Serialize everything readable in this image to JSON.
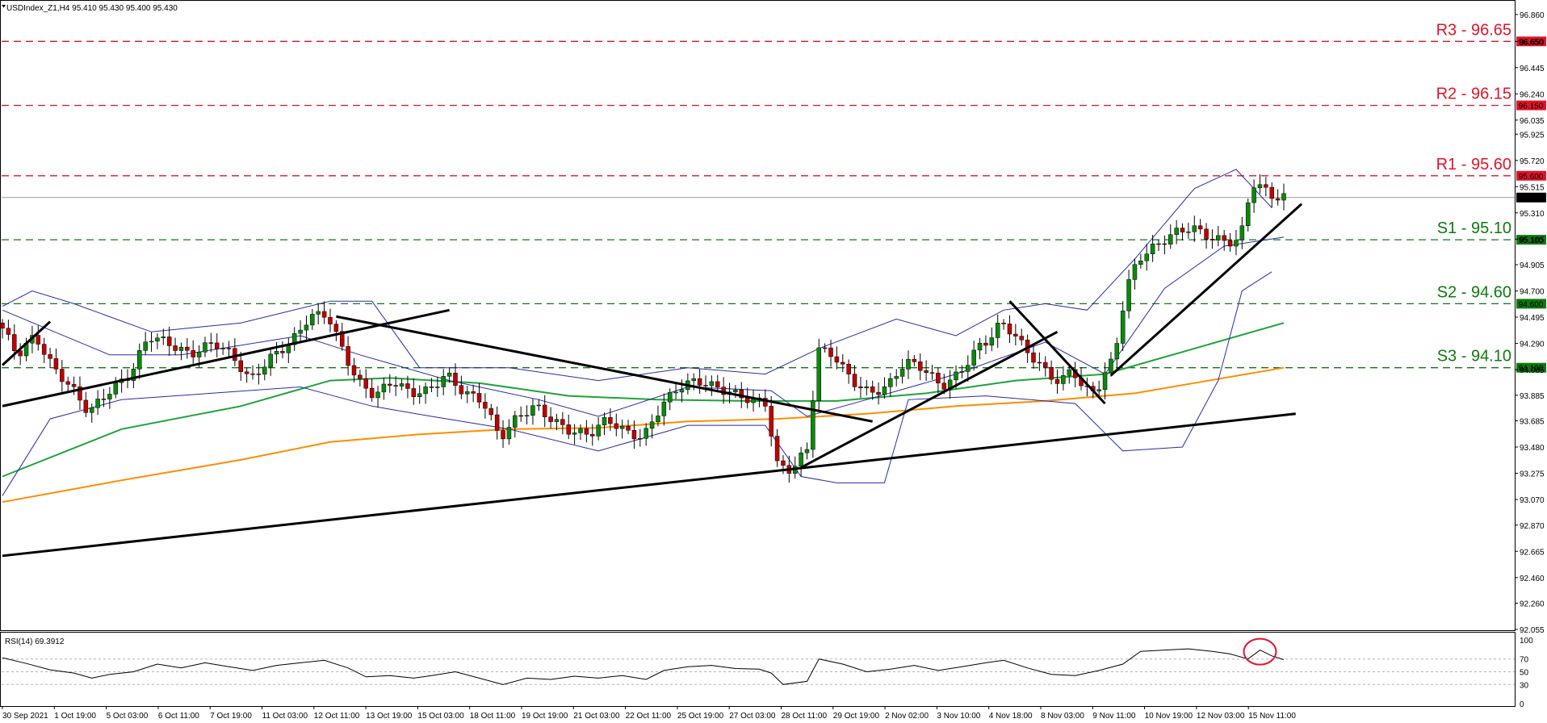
{
  "header": {
    "symbol_line": "USDIndex_Z1,H4  95.410 95.430 95.400 95.430",
    "rsi_line": "RSI(14) 69.3912"
  },
  "colors": {
    "bull": "#0a8a0a",
    "bear": "#c00000",
    "bollinger": "#2a2aa8",
    "ma_green": "#1fa33a",
    "ma_orange": "#ff8c00",
    "trendline": "#000000",
    "resistance": "#e0142a",
    "support": "#0d7a0d",
    "rsi_line": "#000000",
    "highlight_circle": "#e0142a",
    "current_price_line": "#9a9a9a"
  },
  "chart_data": {
    "type": "candlestick",
    "title": "",
    "price_axis": {
      "ticks": [
        "96.860",
        "96.650",
        "96.445",
        "96.240",
        "96.035",
        "95.925",
        "95.720",
        "95.515",
        "95.310",
        "95.105",
        "94.905",
        "94.700",
        "94.495",
        "94.290",
        "94.085",
        "93.885",
        "93.685",
        "93.480",
        "93.275",
        "93.070",
        "92.870",
        "92.665",
        "92.460",
        "92.260",
        "92.055"
      ],
      "range": [
        92.055,
        96.86
      ]
    },
    "time_axis": {
      "labels": [
        "30 Sep 2021",
        "1 Oct 19:00",
        "5 Oct 03:00",
        "6 Oct 11:00",
        "7 Oct 19:00",
        "11 Oct 03:00",
        "12 Oct 11:00",
        "13 Oct 19:00",
        "15 Oct 03:00",
        "18 Oct 11:00",
        "19 Oct 19:00",
        "21 Oct 03:00",
        "22 Oct 11:00",
        "25 Oct 19:00",
        "27 Oct 03:00",
        "28 Oct 11:00",
        "29 Oct 19:00",
        "2 Nov 02:00",
        "3 Nov 10:00",
        "4 Nov 18:00",
        "8 Nov 03:00",
        "9 Nov 11:00",
        "10 Nov 19:00",
        "12 Nov 03:00",
        "15 Nov 11:00"
      ],
      "bar_range": [
        0,
        215
      ]
    },
    "levels": [
      {
        "label": "R3 - 96.65",
        "tag": "96.650",
        "price": 96.65,
        "kind": "resistance"
      },
      {
        "label": "R2 - 96.15",
        "tag": "96.150",
        "price": 96.15,
        "kind": "resistance"
      },
      {
        "label": "R1 - 95.60",
        "tag": "95.600",
        "price": 95.6,
        "kind": "resistance"
      },
      {
        "label": "S1 - 95.10",
        "tag": "95.100",
        "price": 95.1,
        "kind": "support"
      },
      {
        "label": "S2 - 94.60",
        "tag": "94.600",
        "price": 94.6,
        "kind": "support"
      },
      {
        "label": "S3 - 94.10",
        "tag": "94.100",
        "price": 94.1,
        "kind": "support"
      }
    ],
    "current_price": {
      "price": 95.43,
      "tag": "95.430"
    },
    "trendlines": [
      {
        "from": [
          0,
          92.63
        ],
        "to": [
          217,
          93.74
        ]
      },
      {
        "from": [
          0,
          94.12
        ],
        "to": [
          8,
          94.46
        ]
      },
      {
        "from": [
          0,
          93.8
        ],
        "to": [
          75,
          94.55
        ]
      },
      {
        "from": [
          56,
          94.5
        ],
        "to": [
          146,
          93.68
        ]
      },
      {
        "from": [
          134,
          93.32
        ],
        "to": [
          177,
          94.38
        ]
      },
      {
        "from": [
          169,
          94.62
        ],
        "to": [
          185,
          93.82
        ]
      },
      {
        "from": [
          186,
          94.04
        ],
        "to": [
          218,
          95.38
        ]
      }
    ],
    "rsi": {
      "name": "RSI(14)",
      "value": 69.3912,
      "axis_ticks": [
        0,
        30,
        50,
        70,
        100
      ],
      "levels": [
        30,
        50,
        70
      ],
      "highlight_bar": 211
    },
    "ohlc_x_bars": [
      0,
      215
    ],
    "candle_path": [
      [
        0,
        94.45
      ],
      [
        3,
        94.2
      ],
      [
        6,
        94.35
      ],
      [
        9,
        94.1
      ],
      [
        12,
        93.95
      ],
      [
        15,
        93.75
      ],
      [
        18,
        93.9
      ],
      [
        22,
        94.05
      ],
      [
        25,
        94.35
      ],
      [
        28,
        94.3
      ],
      [
        32,
        94.2
      ],
      [
        36,
        94.3
      ],
      [
        39,
        94.2
      ],
      [
        42,
        94.0
      ],
      [
        46,
        94.2
      ],
      [
        49,
        94.3
      ],
      [
        52,
        94.5
      ],
      [
        55,
        94.52
      ],
      [
        57,
        94.3
      ],
      [
        60,
        94.0
      ],
      [
        63,
        93.88
      ],
      [
        66,
        94.0
      ],
      [
        69,
        93.9
      ],
      [
        72,
        93.92
      ],
      [
        75,
        94.05
      ],
      [
        78,
        93.9
      ],
      [
        81,
        93.85
      ],
      [
        84,
        93.55
      ],
      [
        87,
        93.72
      ],
      [
        90,
        93.8
      ],
      [
        93,
        93.68
      ],
      [
        96,
        93.6
      ],
      [
        99,
        93.58
      ],
      [
        102,
        93.7
      ],
      [
        105,
        93.6
      ],
      [
        108,
        93.55
      ],
      [
        111,
        93.8
      ],
      [
        114,
        93.95
      ],
      [
        117,
        94.0
      ],
      [
        120,
        93.95
      ],
      [
        123,
        93.9
      ],
      [
        126,
        93.85
      ],
      [
        129,
        93.82
      ],
      [
        130,
        93.35
      ],
      [
        133,
        93.3
      ],
      [
        136,
        93.5
      ],
      [
        137,
        94.25
      ],
      [
        140,
        94.2
      ],
      [
        143,
        94.0
      ],
      [
        146,
        93.9
      ],
      [
        149,
        93.95
      ],
      [
        152,
        94.15
      ],
      [
        155,
        94.1
      ],
      [
        158,
        93.95
      ],
      [
        161,
        94.05
      ],
      [
        164,
        94.25
      ],
      [
        166,
        94.32
      ],
      [
        168,
        94.45
      ],
      [
        170,
        94.38
      ],
      [
        172,
        94.25
      ],
      [
        174,
        94.15
      ],
      [
        176,
        94.05
      ],
      [
        178,
        93.98
      ],
      [
        180,
        94.1
      ],
      [
        182,
        93.92
      ],
      [
        184,
        93.92
      ],
      [
        187,
        94.18
      ],
      [
        189,
        94.7
      ],
      [
        191,
        94.95
      ],
      [
        194,
        95.05
      ],
      [
        197,
        95.15
      ],
      [
        200,
        95.2
      ],
      [
        203,
        95.12
      ],
      [
        206,
        95.08
      ],
      [
        208,
        95.1
      ],
      [
        209,
        95.25
      ],
      [
        210,
        95.55
      ],
      [
        212,
        95.5
      ],
      [
        214,
        95.43
      ]
    ],
    "bollinger_mid": [
      [
        0,
        94.55
      ],
      [
        18,
        94.2
      ],
      [
        30,
        94.2
      ],
      [
        50,
        94.35
      ],
      [
        60,
        94.2
      ],
      [
        75,
        94.0
      ],
      [
        90,
        93.85
      ],
      [
        100,
        93.72
      ],
      [
        115,
        93.95
      ],
      [
        129,
        93.92
      ],
      [
        135,
        93.72
      ],
      [
        145,
        93.85
      ],
      [
        160,
        94.05
      ],
      [
        175,
        94.3
      ],
      [
        185,
        94.05
      ],
      [
        195,
        94.72
      ],
      [
        205,
        95.05
      ],
      [
        215,
        95.12
      ]
    ],
    "bollinger_upper": [
      [
        0,
        94.58
      ],
      [
        5,
        94.7
      ],
      [
        12,
        94.6
      ],
      [
        25,
        94.38
      ],
      [
        40,
        94.45
      ],
      [
        55,
        94.62
      ],
      [
        62,
        94.62
      ],
      [
        70,
        94.1
      ],
      [
        85,
        94.1
      ],
      [
        100,
        94.0
      ],
      [
        115,
        94.1
      ],
      [
        128,
        94.05
      ],
      [
        137,
        94.25
      ],
      [
        150,
        94.48
      ],
      [
        160,
        94.35
      ],
      [
        168,
        94.55
      ],
      [
        175,
        94.6
      ],
      [
        182,
        94.55
      ],
      [
        190,
        94.95
      ],
      [
        200,
        95.5
      ],
      [
        207,
        95.65
      ],
      [
        213,
        95.35
      ]
    ],
    "bollinger_lower": [
      [
        0,
        93.1
      ],
      [
        8,
        93.7
      ],
      [
        20,
        93.85
      ],
      [
        35,
        93.9
      ],
      [
        50,
        93.95
      ],
      [
        62,
        93.8
      ],
      [
        72,
        93.72
      ],
      [
        85,
        93.62
      ],
      [
        100,
        93.45
      ],
      [
        115,
        93.65
      ],
      [
        128,
        93.65
      ],
      [
        134,
        93.25
      ],
      [
        140,
        93.2
      ],
      [
        148,
        93.2
      ],
      [
        152,
        93.85
      ],
      [
        165,
        93.88
      ],
      [
        180,
        93.82
      ],
      [
        188,
        93.45
      ],
      [
        198,
        93.48
      ],
      [
        204,
        94.0
      ],
      [
        208,
        94.7
      ],
      [
        213,
        94.85
      ]
    ],
    "ma_green": [
      [
        0,
        93.25
      ],
      [
        20,
        93.62
      ],
      [
        40,
        93.8
      ],
      [
        55,
        94.0
      ],
      [
        65,
        94.02
      ],
      [
        80,
        93.98
      ],
      [
        95,
        93.88
      ],
      [
        110,
        93.85
      ],
      [
        125,
        93.84
      ],
      [
        140,
        93.84
      ],
      [
        155,
        93.9
      ],
      [
        170,
        94.0
      ],
      [
        185,
        94.05
      ],
      [
        200,
        94.25
      ],
      [
        215,
        94.45
      ]
    ],
    "ma_orange": [
      [
        0,
        93.05
      ],
      [
        20,
        93.22
      ],
      [
        40,
        93.38
      ],
      [
        55,
        93.52
      ],
      [
        70,
        93.58
      ],
      [
        85,
        93.62
      ],
      [
        100,
        93.63
      ],
      [
        115,
        93.68
      ],
      [
        130,
        93.7
      ],
      [
        145,
        93.74
      ],
      [
        160,
        93.8
      ],
      [
        175,
        93.84
      ],
      [
        190,
        93.9
      ],
      [
        200,
        93.98
      ],
      [
        215,
        94.1
      ]
    ],
    "rsi_series": [
      [
        0,
        72
      ],
      [
        4,
        63
      ],
      [
        8,
        53
      ],
      [
        12,
        48
      ],
      [
        15,
        40
      ],
      [
        18,
        46
      ],
      [
        22,
        50
      ],
      [
        26,
        62
      ],
      [
        30,
        56
      ],
      [
        34,
        64
      ],
      [
        38,
        58
      ],
      [
        42,
        52
      ],
      [
        46,
        60
      ],
      [
        50,
        64
      ],
      [
        54,
        68
      ],
      [
        58,
        56
      ],
      [
        61,
        42
      ],
      [
        65,
        44
      ],
      [
        69,
        40
      ],
      [
        72,
        44
      ],
      [
        76,
        50
      ],
      [
        80,
        40
      ],
      [
        84,
        30
      ],
      [
        88,
        40
      ],
      [
        92,
        38
      ],
      [
        96,
        43
      ],
      [
        100,
        40
      ],
      [
        104,
        44
      ],
      [
        108,
        38
      ],
      [
        111,
        52
      ],
      [
        115,
        58
      ],
      [
        119,
        60
      ],
      [
        123,
        55
      ],
      [
        127,
        54
      ],
      [
        129,
        48
      ],
      [
        131,
        30
      ],
      [
        135,
        35
      ],
      [
        137,
        70
      ],
      [
        141,
        62
      ],
      [
        145,
        50
      ],
      [
        149,
        54
      ],
      [
        153,
        60
      ],
      [
        157,
        52
      ],
      [
        161,
        58
      ],
      [
        165,
        64
      ],
      [
        168,
        68
      ],
      [
        172,
        56
      ],
      [
        176,
        46
      ],
      [
        180,
        44
      ],
      [
        184,
        52
      ],
      [
        188,
        62
      ],
      [
        191,
        82
      ],
      [
        195,
        84
      ],
      [
        199,
        86
      ],
      [
        203,
        82
      ],
      [
        206,
        78
      ],
      [
        209,
        70
      ],
      [
        211,
        84
      ],
      [
        213,
        75
      ],
      [
        215,
        69
      ]
    ]
  }
}
